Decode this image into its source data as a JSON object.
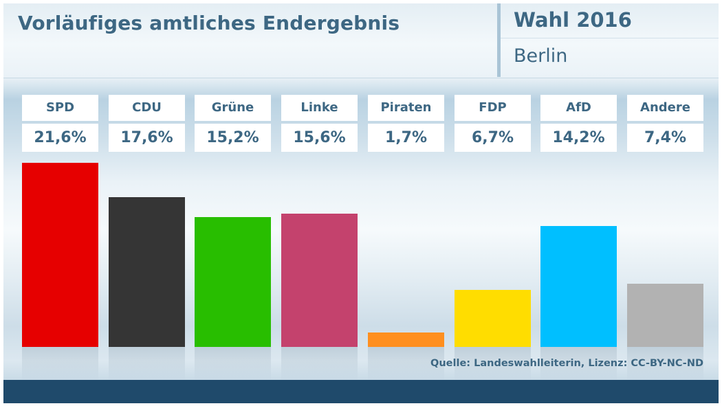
{
  "header": {
    "title": "Vorläufiges amtliches Endergebnis",
    "election": "Wahl 2016",
    "region": "Berlin"
  },
  "source": "Quelle: Landeswahlleiterin, Lizenz: CC-BY-NC-ND",
  "chart_data": {
    "type": "bar",
    "title": "Vorläufiges amtliches Endergebnis",
    "categories": [
      "SPD",
      "CDU",
      "Grüne",
      "Linke",
      "Piraten",
      "FDP",
      "AfD",
      "Andere"
    ],
    "values": [
      21.6,
      17.6,
      15.2,
      15.6,
      1.7,
      6.7,
      14.2,
      7.4
    ],
    "value_labels": [
      "21,6%",
      "17,6%",
      "15,2%",
      "15,6%",
      "1,7%",
      "6,7%",
      "14,2%",
      "7,4%"
    ],
    "colors": [
      "#e60000",
      "#353535",
      "#28be00",
      "#c4426d",
      "#ff8f1f",
      "#ffdd00",
      "#00bfff",
      "#b2b2b2"
    ],
    "unit": "%",
    "ylim": [
      0,
      21.6
    ],
    "grid": false,
    "legend": "none"
  }
}
